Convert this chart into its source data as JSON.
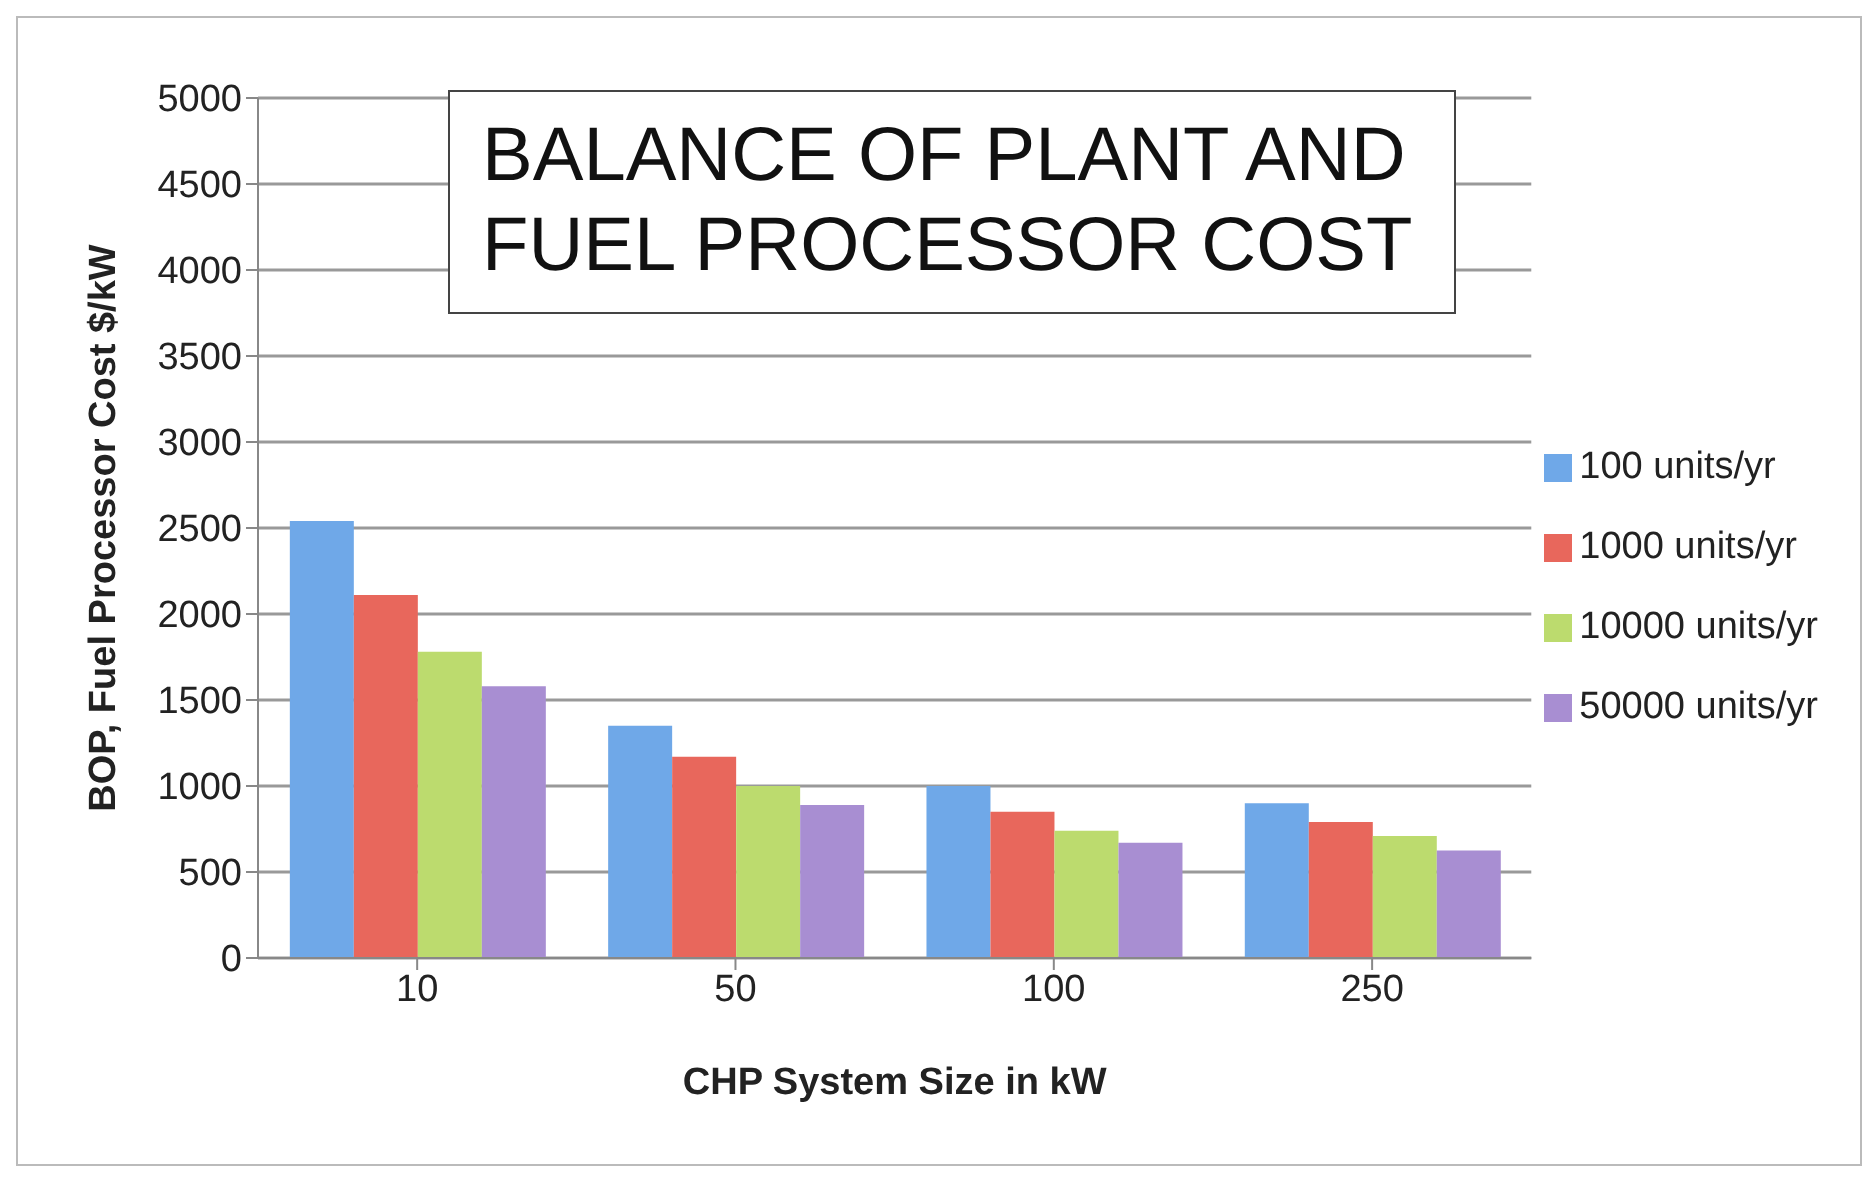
{
  "chart_data": {
    "type": "bar",
    "title": "BALANCE OF PLANT AND FUEL PROCESSOR COST",
    "xlabel": "CHP System Size in kW",
    "ylabel": "BOP, Fuel Processor Cost $/kW",
    "categories": [
      "10",
      "50",
      "100",
      "250"
    ],
    "series": [
      {
        "name": "100 units/yr",
        "color": "#6fa8e8",
        "values": [
          2540,
          1350,
          1000,
          900
        ]
      },
      {
        "name": "1000 units/yr",
        "color": "#e8675c",
        "values": [
          2110,
          1170,
          850,
          790
        ]
      },
      {
        "name": "10000 units/yr",
        "color": "#bcdb6e",
        "values": [
          1780,
          1000,
          740,
          710
        ]
      },
      {
        "name": "50000 units/yr",
        "color": "#a88ed2",
        "values": [
          1580,
          890,
          670,
          625
        ]
      }
    ],
    "ylim": [
      0,
      5000
    ],
    "yticks": [
      0,
      500,
      1000,
      1500,
      2000,
      2500,
      3000,
      3500,
      4000,
      4500,
      5000
    ],
    "grid": "y",
    "legend": "right"
  }
}
